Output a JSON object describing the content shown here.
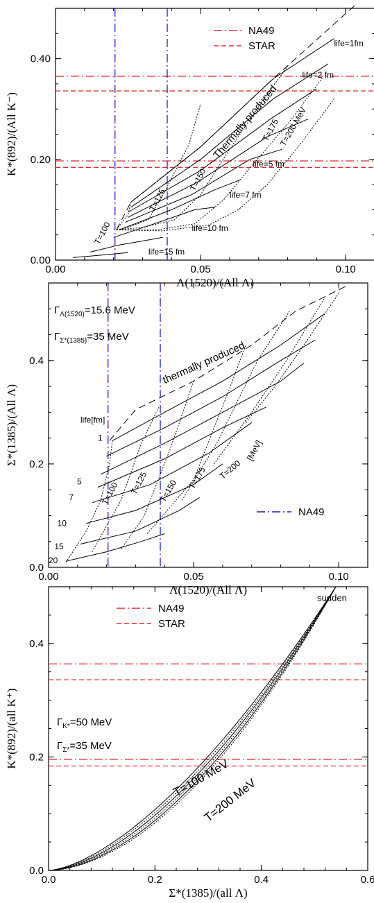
{
  "colors": {
    "red": "#e8282a",
    "blue": "#1a1acc",
    "black": "#000000"
  },
  "chart_data": [
    {
      "type": "line",
      "xlabel": "Λ(1520)/(All Λ)",
      "ylabel": "K*(892)/(All K⁻)",
      "xlim": [
        0,
        0.11
      ],
      "ylim": [
        0,
        0.5
      ],
      "xticks": [
        "0.00",
        "0.05",
        "0.10"
      ],
      "yticks": [
        "0.00",
        "0.20",
        "0.40"
      ],
      "legend": [
        {
          "name": "NA49",
          "style": "dash-dot",
          "color": "red"
        },
        {
          "name": "STAR",
          "style": "dashed",
          "color": "red"
        }
      ],
      "hlines": [
        {
          "y": 0.365,
          "style": "dash-dot",
          "color": "red"
        },
        {
          "y": 0.336,
          "style": "dashed",
          "color": "red"
        },
        {
          "y": 0.197,
          "style": "dash-dot",
          "color": "red"
        },
        {
          "y": 0.184,
          "style": "dashed",
          "color": "red"
        }
      ],
      "vlines": [
        {
          "x": 0.0205,
          "style": "dash-dot",
          "color": "blue"
        },
        {
          "x": 0.0385,
          "style": "dash-dot",
          "color": "blue"
        }
      ],
      "thermal": [
        [
          0.021,
          0.06
        ],
        [
          0.026,
          0.115
        ],
        [
          0.05,
          0.225
        ],
        [
          0.075,
          0.36
        ],
        [
          0.103,
          0.505
        ]
      ],
      "iso_T": [
        [
          [
            0.021,
            0.06
          ],
          [
            0.025,
            0.09
          ],
          [
            0.026,
            0.115
          ]
        ],
        [
          [
            0.021,
            0.06
          ],
          [
            0.025,
            0.065
          ],
          [
            0.032,
            0.08
          ],
          [
            0.038,
            0.14
          ],
          [
            0.046,
            0.23
          ],
          [
            0.05,
            0.31
          ]
        ],
        [
          [
            0.021,
            0.06
          ],
          [
            0.03,
            0.065
          ],
          [
            0.041,
            0.08
          ],
          [
            0.05,
            0.13
          ],
          [
            0.06,
            0.22
          ],
          [
            0.073,
            0.33
          ],
          [
            0.08,
            0.385
          ]
        ],
        [
          [
            0.021,
            0.06
          ],
          [
            0.035,
            0.06
          ],
          [
            0.048,
            0.072
          ],
          [
            0.058,
            0.12
          ],
          [
            0.068,
            0.19
          ],
          [
            0.08,
            0.27
          ],
          [
            0.092,
            0.362
          ]
        ],
        [
          [
            0.021,
            0.06
          ],
          [
            0.037,
            0.058
          ],
          [
            0.053,
            0.07
          ],
          [
            0.063,
            0.1
          ],
          [
            0.073,
            0.15
          ],
          [
            0.085,
            0.235
          ],
          [
            0.096,
            0.32
          ]
        ]
      ],
      "iso_life": [
        [
          [
            0.026,
            0.115
          ],
          [
            0.05,
            0.225
          ],
          [
            0.075,
            0.36
          ],
          [
            0.096,
            0.44
          ]
        ],
        [
          [
            0.026,
            0.105
          ],
          [
            0.05,
            0.2
          ],
          [
            0.075,
            0.32
          ],
          [
            0.094,
            0.39
          ]
        ],
        [
          [
            0.025,
            0.095
          ],
          [
            0.05,
            0.178
          ],
          [
            0.074,
            0.28
          ],
          [
            0.09,
            0.34
          ]
        ],
        [
          [
            0.025,
            0.085
          ],
          [
            0.049,
            0.155
          ],
          [
            0.073,
            0.245
          ],
          [
            0.087,
            0.28
          ]
        ],
        [
          [
            0.024,
            0.075
          ],
          [
            0.047,
            0.13
          ],
          [
            0.067,
            0.2
          ],
          [
            0.078,
            0.22
          ]
        ],
        [
          [
            0.022,
            0.06
          ],
          [
            0.04,
            0.1
          ],
          [
            0.055,
            0.14
          ],
          [
            0.064,
            0.16
          ]
        ],
        [
          [
            0.02,
            0.045
          ],
          [
            0.034,
            0.072
          ],
          [
            0.048,
            0.1
          ],
          [
            0.055,
            0.105
          ]
        ],
        [
          [
            0.012,
            0.016
          ],
          [
            0.022,
            0.03
          ],
          [
            0.032,
            0.04
          ],
          [
            0.037,
            0.045
          ]
        ],
        [
          [
            0.006,
            0.005
          ],
          [
            0.012,
            0.008
          ],
          [
            0.02,
            0.012
          ],
          [
            0.025,
            0.015
          ]
        ]
      ],
      "annotations": [
        {
          "text": "life=1fm",
          "x": 0.096,
          "y": 0.425,
          "rot": 0,
          "size": 12
        },
        {
          "text": "life=2 fm",
          "x": 0.085,
          "y": 0.362,
          "rot": 0,
          "size": 12
        },
        {
          "text": "Thermally produced",
          "x": 0.056,
          "y": 0.2,
          "rot": -50,
          "size": 15
        },
        {
          "text": "T=175",
          "x": 0.073,
          "y": 0.235,
          "rot": -62,
          "size": 12
        },
        {
          "text": "T=200 MeV",
          "x": 0.079,
          "y": 0.225,
          "rot": -60,
          "size": 12
        },
        {
          "text": "life=5 fm",
          "x": 0.068,
          "y": 0.185,
          "rot": 0,
          "size": 12
        },
        {
          "text": "T=150",
          "x": 0.048,
          "y": 0.136,
          "rot": -62,
          "size": 12
        },
        {
          "text": "T=125",
          "x": 0.034,
          "y": 0.096,
          "rot": -62,
          "size": 12
        },
        {
          "text": "life=7 fm",
          "x": 0.06,
          "y": 0.124,
          "rot": 0,
          "size": 12
        },
        {
          "text": "T=100",
          "x": 0.015,
          "y": 0.03,
          "rot": -62,
          "size": 12
        },
        {
          "text": "life=10 fm",
          "x": 0.047,
          "y": 0.058,
          "rot": 0,
          "size": 12
        },
        {
          "text": "life=15 fm",
          "x": 0.032,
          "y": 0.011,
          "rot": 0,
          "size": 12
        }
      ]
    },
    {
      "type": "line",
      "xlabel": "Λ(1520)/(All Λ)",
      "ylabel": "Σ*(1385)/(All Λ)",
      "xlim": [
        0,
        0.11
      ],
      "ylim": [
        0,
        0.55
      ],
      "xticks": [
        "0.00",
        "0.05",
        "0.10"
      ],
      "yticks": [
        "0.0",
        "0.2",
        "0.4"
      ],
      "legend": [
        {
          "name": "NA49",
          "style": "dash-dot",
          "color": "blue"
        }
      ],
      "vlines": [
        {
          "x": 0.0205,
          "style": "dash-dot",
          "color": "blue"
        },
        {
          "x": 0.0385,
          "style": "dash-dot",
          "color": "blue"
        }
      ],
      "thermal": [
        [
          0.021,
          0.245
        ],
        [
          0.03,
          0.305
        ],
        [
          0.05,
          0.36
        ],
        [
          0.07,
          0.43
        ],
        [
          0.085,
          0.495
        ],
        [
          0.103,
          0.545
        ]
      ],
      "iso_T": [
        [
          [
            0.006,
            0.01
          ],
          [
            0.013,
            0.07
          ],
          [
            0.018,
            0.13
          ],
          [
            0.021,
            0.2
          ],
          [
            0.022,
            0.245
          ]
        ],
        [
          [
            0.015,
            0.03
          ],
          [
            0.025,
            0.13
          ],
          [
            0.032,
            0.24
          ],
          [
            0.038,
            0.31
          ]
        ],
        [
          [
            0.025,
            0.035
          ],
          [
            0.033,
            0.1
          ],
          [
            0.042,
            0.23
          ],
          [
            0.05,
            0.36
          ]
        ],
        [
          [
            0.034,
            0.065
          ],
          [
            0.05,
            0.17
          ],
          [
            0.062,
            0.34
          ],
          [
            0.068,
            0.43
          ]
        ],
        [
          [
            0.046,
            0.13
          ],
          [
            0.058,
            0.24
          ],
          [
            0.072,
            0.4
          ],
          [
            0.083,
            0.495
          ]
        ],
        [
          [
            0.057,
            0.2
          ],
          [
            0.07,
            0.3
          ],
          [
            0.082,
            0.4
          ],
          [
            0.095,
            0.52
          ]
        ],
        [
          [
            0.068,
            0.28
          ],
          [
            0.078,
            0.35
          ],
          [
            0.088,
            0.43
          ],
          [
            0.1,
            0.53
          ]
        ]
      ],
      "iso_life": [
        [
          [
            0.022,
            0.245
          ],
          [
            0.04,
            0.3
          ],
          [
            0.06,
            0.36
          ],
          [
            0.08,
            0.43
          ],
          [
            0.095,
            0.49
          ]
        ],
        [
          [
            0.02,
            0.215
          ],
          [
            0.04,
            0.27
          ],
          [
            0.06,
            0.33
          ],
          [
            0.08,
            0.4
          ],
          [
            0.092,
            0.44
          ]
        ],
        [
          [
            0.018,
            0.18
          ],
          [
            0.04,
            0.24
          ],
          [
            0.06,
            0.3
          ],
          [
            0.08,
            0.36
          ],
          [
            0.088,
            0.395
          ]
        ],
        [
          [
            0.017,
            0.155
          ],
          [
            0.04,
            0.21
          ],
          [
            0.06,
            0.27
          ],
          [
            0.075,
            0.31
          ]
        ],
        [
          [
            0.015,
            0.125
          ],
          [
            0.035,
            0.16
          ],
          [
            0.055,
            0.22
          ],
          [
            0.07,
            0.28
          ]
        ],
        [
          [
            0.013,
            0.085
          ],
          [
            0.03,
            0.11
          ],
          [
            0.05,
            0.16
          ],
          [
            0.06,
            0.2
          ]
        ],
        [
          [
            0.011,
            0.045
          ],
          [
            0.03,
            0.07
          ],
          [
            0.045,
            0.11
          ],
          [
            0.052,
            0.135
          ]
        ],
        [
          [
            0.006,
            0.012
          ],
          [
            0.02,
            0.03
          ],
          [
            0.032,
            0.05
          ],
          [
            0.04,
            0.065
          ]
        ]
      ],
      "annotations": [
        {
          "text": "thermally produced",
          "x": 0.04,
          "y": 0.355,
          "rot": -24,
          "size": 15
        },
        {
          "text": "life[fm]",
          "x": 0.011,
          "y": 0.28,
          "rot": 0,
          "size": 12
        },
        {
          "text": "1",
          "x": 0.017,
          "y": 0.245,
          "rot": 0,
          "size": 12
        },
        {
          "text": "5",
          "x": 0.0098,
          "y": 0.16,
          "rot": 0,
          "size": 12
        },
        {
          "text": "7",
          "x": 0.007,
          "y": 0.13,
          "rot": 0,
          "size": 12
        },
        {
          "text": "10",
          "x": 0.003,
          "y": 0.08,
          "rot": 0,
          "size": 12
        },
        {
          "text": "15",
          "x": 0.002,
          "y": 0.035,
          "rot": 0,
          "size": 12
        },
        {
          "text": "20",
          "x": 0.0,
          "y": 0.008,
          "rot": 0,
          "size": 12
        },
        {
          "text": "T=100",
          "x": 0.02,
          "y": 0.12,
          "rot": -62,
          "size": 12
        },
        {
          "text": "T=125",
          "x": 0.03,
          "y": 0.14,
          "rot": -62,
          "size": 12
        },
        {
          "text": "T=150",
          "x": 0.04,
          "y": 0.125,
          "rot": -60,
          "size": 12
        },
        {
          "text": "T=175",
          "x": 0.05,
          "y": 0.15,
          "rot": -60,
          "size": 12
        },
        {
          "text": "T=200",
          "x": 0.06,
          "y": 0.17,
          "rot": -40,
          "size": 12
        },
        {
          "text": "[MeV]",
          "x": 0.07,
          "y": 0.205,
          "rot": -62,
          "size": 12
        }
      ],
      "gamma_lines": [
        {
          "prefix": "Γ",
          "sub": "Λ(1520)",
          "suffix": "=15.6 MeV"
        },
        {
          "prefix": "Γ",
          "sub": "Σ*(1385)",
          "suffix": "=35 MeV"
        }
      ]
    },
    {
      "type": "line",
      "xlabel": "Σ*(1385)/(all Λ)",
      "ylabel": "K*(892)/(all K⁺)",
      "xlim": [
        0,
        0.6
      ],
      "ylim": [
        0,
        0.5
      ],
      "xticks": [
        "0.0",
        "0.2",
        "0.4",
        "0.6"
      ],
      "yticks": [
        "0.0",
        "0.2",
        "0.4"
      ],
      "legend": [
        {
          "name": "NA49",
          "style": "dash-dot",
          "color": "red"
        },
        {
          "name": "STAR",
          "style": "dashed",
          "color": "red"
        }
      ],
      "hlines": [
        {
          "y": 0.364,
          "style": "dash-dot",
          "color": "red"
        },
        {
          "y": 0.336,
          "style": "dashed",
          "color": "red"
        },
        {
          "y": 0.196,
          "style": "dash-dot",
          "color": "red"
        },
        {
          "y": 0.184,
          "style": "dashed",
          "color": "red"
        }
      ],
      "curve_exponent": [
        1.55,
        1.6,
        1.65,
        1.7,
        1.75,
        1.8
      ],
      "curve_scale": 0.5,
      "curve_xmax": 0.54,
      "annotations": [
        {
          "text": "sudden",
          "x": 0.505,
          "y": 0.475,
          "rot": 0,
          "size": 13
        },
        {
          "text": "T=100 MeV",
          "x": 0.24,
          "y": 0.13,
          "rot": -30,
          "size": 17
        },
        {
          "text": "T=200 MeV",
          "x": 0.3,
          "y": 0.085,
          "rot": -38,
          "size": 17
        }
      ],
      "gamma_lines": [
        {
          "prefix": "Γ",
          "sub": "K*",
          "suffix": "=50 MeV"
        },
        {
          "prefix": "Γ",
          "sub": "Σ*",
          "suffix": "=35 MeV"
        }
      ]
    }
  ]
}
